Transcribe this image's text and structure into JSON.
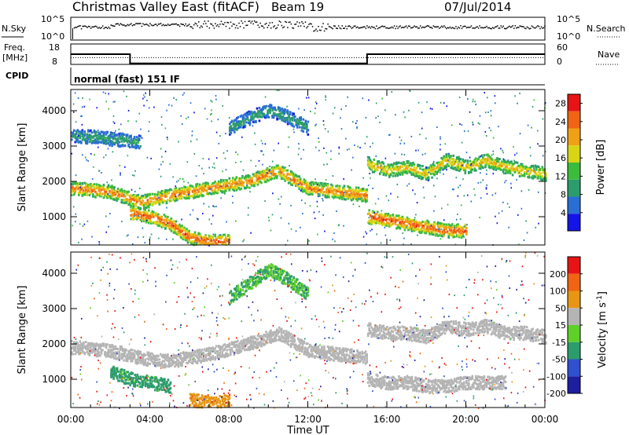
{
  "header": {
    "station": "Christmas Valley East (fitACF)",
    "beam": "Beam 19",
    "date": "07/Jul/2014"
  },
  "strip_labels": {
    "nsky": "N.Sky",
    "nsky_ticks": [
      "10^5",
      "10^0"
    ],
    "nsearch": "N.Search",
    "freq_line1": "Freq.",
    "freq_line2": "[MHz]",
    "freq_ticks": [
      "18",
      "8"
    ],
    "nave": "Nave",
    "nave_ticks": [
      "60",
      "0"
    ],
    "cpid": "CPID",
    "cpid_value": "normal (fast) 151 IF"
  },
  "chart_data": [
    {
      "type": "heatmap",
      "title": "Power",
      "ylabel": "Slant Range [km]",
      "xlabel": "Time UT",
      "x_ticks": [
        "00:00",
        "04:00",
        "08:00",
        "12:00",
        "16:00",
        "20:00",
        "00:00"
      ],
      "xlim_hours": [
        0,
        24
      ],
      "y_ticks": [
        1000,
        2000,
        3000,
        4000
      ],
      "ylim": [
        200,
        4600
      ],
      "colorbar": {
        "label": "Power [dB]",
        "ticks": [
          4,
          8,
          12,
          16,
          20,
          24,
          28
        ],
        "range": [
          0,
          30
        ],
        "colors": [
          "#1414e6",
          "#2a6ed4",
          "#2c9c6c",
          "#3cbc3c",
          "#d6d614",
          "#f0a014",
          "#f06414",
          "#e61414"
        ]
      },
      "echo_bands": [
        {
          "name": "main_band",
          "hours": [
            0,
            2,
            3.5,
            5,
            7,
            9,
            10.5,
            12,
            13.5,
            15
          ],
          "range_km": [
            1800,
            1700,
            1400,
            1600,
            1800,
            2000,
            2300,
            1800,
            1700,
            1600
          ],
          "power_db": 24
        },
        {
          "name": "lower_band",
          "hours": [
            3,
            4,
            5,
            6,
            7,
            8
          ],
          "range_km": [
            1100,
            1000,
            800,
            400,
            300,
            300
          ],
          "power_db": 26
        },
        {
          "name": "high_band",
          "hours": [
            0,
            2,
            3.5
          ],
          "range_km": [
            3300,
            3200,
            3100
          ],
          "power_db": 10
        },
        {
          "name": "evening_band",
          "hours": [
            15,
            16,
            17,
            18,
            19,
            20,
            21,
            22,
            23,
            24
          ],
          "range_km": [
            2500,
            2300,
            2400,
            2200,
            2600,
            2400,
            2600,
            2400,
            2300,
            2200
          ],
          "power_db": 20
        },
        {
          "name": "evening_low",
          "hours": [
            15,
            16,
            17,
            18,
            19,
            20
          ],
          "range_km": [
            1000,
            900,
            800,
            700,
            600,
            600
          ],
          "power_db": 26
        },
        {
          "name": "arc_12",
          "hours": [
            8,
            9,
            10,
            11,
            12
          ],
          "range_km": [
            3500,
            3800,
            4000,
            3800,
            3500
          ],
          "power_db": 10
        }
      ]
    },
    {
      "type": "heatmap",
      "title": "Velocity",
      "ylabel": "Slant Range [km]",
      "xlabel": "Time UT",
      "x_ticks": [
        "00:00",
        "04:00",
        "08:00",
        "12:00",
        "16:00",
        "20:00",
        "00:00"
      ],
      "xlim_hours": [
        0,
        24
      ],
      "y_ticks": [
        1000,
        2000,
        3000,
        4000
      ],
      "ylim": [
        200,
        4600
      ],
      "colorbar": {
        "label": "Velocity [m s^-1]",
        "ticks": [
          200,
          100,
          50,
          15,
          -15,
          -50,
          -100,
          -200
        ],
        "colors": [
          "#1e1ea0",
          "#3050d0",
          "#2c9c6c",
          "#5fcf2a",
          "#b4b4b4",
          "#e69614",
          "#f06414",
          "#e61414"
        ]
      },
      "echo_bands": [
        {
          "name": "gs_main",
          "hours": [
            0,
            2,
            3.5,
            5,
            7,
            9,
            10.5,
            12,
            13.5,
            15
          ],
          "range_km": [
            1900,
            1800,
            1600,
            1500,
            1700,
            2000,
            2300,
            1800,
            1700,
            1600
          ],
          "velocity_ms": 0
        },
        {
          "name": "green_arc",
          "hours": [
            8,
            9,
            10,
            11,
            12
          ],
          "range_km": [
            3300,
            3700,
            4100,
            3800,
            3400
          ],
          "velocity_ms": 30
        },
        {
          "name": "green_low",
          "hours": [
            2,
            3,
            4,
            5
          ],
          "range_km": [
            1200,
            1000,
            900,
            800
          ],
          "velocity_ms": 40
        },
        {
          "name": "orange_low",
          "hours": [
            6,
            7,
            8
          ],
          "range_km": [
            400,
            350,
            350
          ],
          "velocity_ms": -40
        },
        {
          "name": "gs_evening",
          "hours": [
            15,
            16,
            17,
            18,
            19,
            20,
            21,
            22,
            23,
            24
          ],
          "range_km": [
            2400,
            2300,
            2300,
            2200,
            2500,
            2400,
            2500,
            2300,
            2300,
            2200
          ],
          "velocity_ms": 0
        },
        {
          "name": "gs_evening_low",
          "hours": [
            15,
            16,
            17,
            18,
            19,
            20,
            21,
            22
          ],
          "range_km": [
            1000,
            900,
            900,
            800,
            800,
            900,
            900,
            900
          ],
          "velocity_ms": 0
        }
      ]
    }
  ],
  "strip_data": {
    "freq_mhz": {
      "hours": [
        0,
        3,
        3,
        15,
        15,
        24
      ],
      "values": [
        13,
        13,
        8.5,
        8.5,
        13,
        13
      ]
    },
    "nave": {
      "hours": [
        0,
        24
      ],
      "values": [
        20,
        20
      ]
    }
  }
}
